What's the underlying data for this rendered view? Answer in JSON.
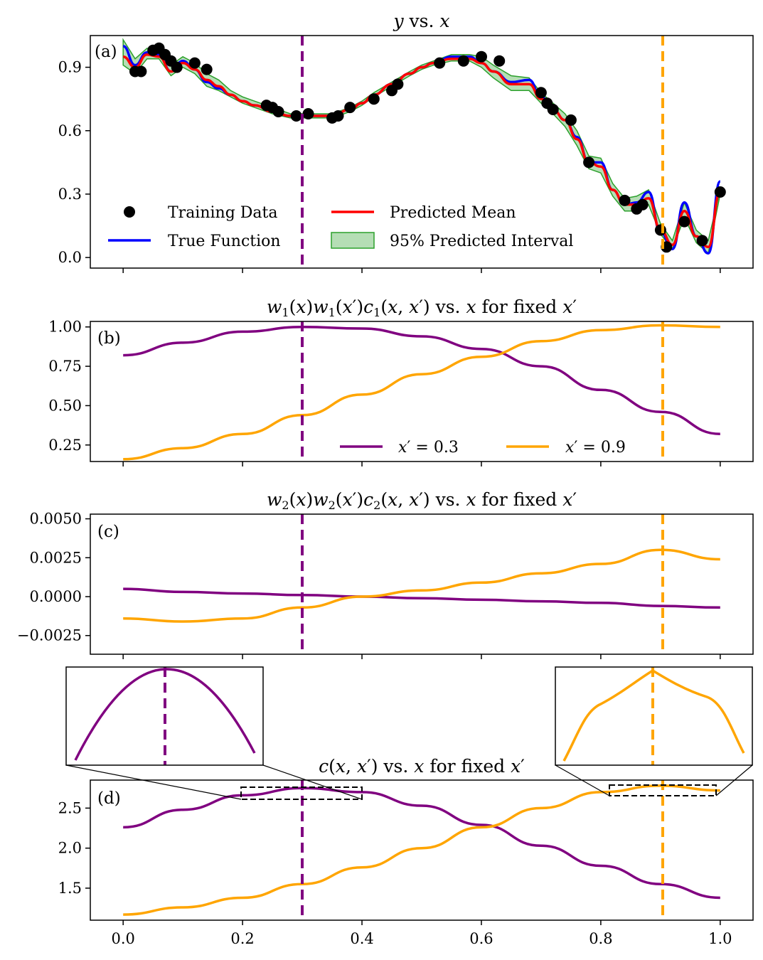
{
  "figure": {
    "x_tick_labels": [
      "0.0",
      "0.2",
      "0.4",
      "0.6",
      "0.8",
      "1.0"
    ],
    "x_ticks": [
      0,
      0.2,
      0.4,
      0.6,
      0.8,
      1.0
    ],
    "x_range": [
      -0.055,
      1.055
    ],
    "fixed_points": [
      0.3,
      0.9
    ],
    "colors": {
      "purple": "#800080",
      "orange": "#FFA500",
      "blue": "#0000FF",
      "red": "#FF0000",
      "green_fill": "#2CA02C",
      "training": "#000000"
    }
  },
  "chart_data": [
    {
      "id": "a",
      "tag": "(a)",
      "type": "line",
      "title": "y vs. x",
      "ylim": [
        -0.05,
        1.05
      ],
      "y_ticks": [
        0.0,
        0.3,
        0.6,
        0.9
      ],
      "y_tick_labels": [
        "0.0",
        "0.3",
        "0.6",
        "0.9"
      ],
      "legend": {
        "training": "Training Data",
        "true": "True Function",
        "mean": "Predicted Mean",
        "interval": "95% Predicted Interval"
      },
      "series": [
        {
          "name": "True Function",
          "x": [
            0.0,
            0.02,
            0.04,
            0.06,
            0.08,
            0.1,
            0.12,
            0.14,
            0.16,
            0.18,
            0.2,
            0.22,
            0.25,
            0.28,
            0.3,
            0.32,
            0.35,
            0.38,
            0.4,
            0.42,
            0.45,
            0.48,
            0.5,
            0.52,
            0.55,
            0.58,
            0.6,
            0.62,
            0.65,
            0.68,
            0.7,
            0.72,
            0.74,
            0.76,
            0.78,
            0.8,
            0.82,
            0.84,
            0.86,
            0.88,
            0.9,
            0.92,
            0.94,
            0.96,
            0.98,
            1.0
          ],
          "values": [
            1.0,
            0.91,
            0.97,
            0.96,
            0.88,
            0.93,
            0.89,
            0.83,
            0.8,
            0.77,
            0.74,
            0.72,
            0.69,
            0.67,
            0.67,
            0.67,
            0.67,
            0.7,
            0.73,
            0.77,
            0.82,
            0.87,
            0.9,
            0.92,
            0.95,
            0.95,
            0.92,
            0.88,
            0.83,
            0.84,
            0.76,
            0.7,
            0.65,
            0.57,
            0.45,
            0.45,
            0.32,
            0.25,
            0.26,
            0.31,
            0.12,
            0.04,
            0.26,
            0.1,
            0.02,
            0.36
          ]
        },
        {
          "name": "Predicted Mean",
          "x": [
            0.0,
            0.02,
            0.04,
            0.06,
            0.08,
            0.1,
            0.12,
            0.14,
            0.16,
            0.18,
            0.2,
            0.22,
            0.25,
            0.28,
            0.3,
            0.32,
            0.35,
            0.38,
            0.4,
            0.42,
            0.45,
            0.48,
            0.5,
            0.52,
            0.55,
            0.58,
            0.6,
            0.62,
            0.65,
            0.68,
            0.7,
            0.72,
            0.74,
            0.76,
            0.78,
            0.8,
            0.82,
            0.84,
            0.86,
            0.88,
            0.9,
            0.92,
            0.94,
            0.96,
            0.98,
            1.0
          ],
          "values": [
            0.95,
            0.9,
            0.96,
            0.95,
            0.88,
            0.92,
            0.89,
            0.84,
            0.81,
            0.77,
            0.74,
            0.72,
            0.69,
            0.67,
            0.67,
            0.67,
            0.67,
            0.7,
            0.73,
            0.77,
            0.82,
            0.87,
            0.9,
            0.92,
            0.94,
            0.94,
            0.92,
            0.88,
            0.82,
            0.82,
            0.75,
            0.7,
            0.65,
            0.56,
            0.45,
            0.43,
            0.32,
            0.25,
            0.25,
            0.28,
            0.13,
            0.06,
            0.22,
            0.1,
            0.05,
            0.31
          ]
        },
        {
          "name": "95% Predicted Interval",
          "x": [
            0.0,
            0.02,
            0.04,
            0.06,
            0.08,
            0.1,
            0.12,
            0.14,
            0.16,
            0.18,
            0.2,
            0.22,
            0.25,
            0.28,
            0.3,
            0.32,
            0.35,
            0.38,
            0.4,
            0.42,
            0.45,
            0.48,
            0.5,
            0.52,
            0.55,
            0.58,
            0.6,
            0.62,
            0.65,
            0.68,
            0.7,
            0.72,
            0.74,
            0.76,
            0.78,
            0.8,
            0.82,
            0.84,
            0.86,
            0.88,
            0.9,
            0.92,
            0.94,
            0.96,
            0.98,
            1.0
          ],
          "lower": [
            0.91,
            0.87,
            0.94,
            0.94,
            0.86,
            0.9,
            0.87,
            0.81,
            0.79,
            0.76,
            0.73,
            0.71,
            0.68,
            0.66,
            0.66,
            0.66,
            0.66,
            0.69,
            0.72,
            0.76,
            0.81,
            0.86,
            0.89,
            0.91,
            0.93,
            0.93,
            0.9,
            0.85,
            0.79,
            0.79,
            0.73,
            0.68,
            0.62,
            0.53,
            0.42,
            0.4,
            0.29,
            0.22,
            0.22,
            0.25,
            0.11,
            0.04,
            0.19,
            0.07,
            0.02,
            0.3
          ],
          "upper": [
            1.03,
            0.94,
            0.99,
            0.97,
            0.91,
            0.95,
            0.92,
            0.87,
            0.84,
            0.79,
            0.76,
            0.74,
            0.71,
            0.68,
            0.68,
            0.68,
            0.68,
            0.71,
            0.74,
            0.78,
            0.83,
            0.88,
            0.91,
            0.93,
            0.96,
            0.96,
            0.95,
            0.91,
            0.86,
            0.85,
            0.78,
            0.73,
            0.68,
            0.6,
            0.48,
            0.47,
            0.35,
            0.28,
            0.29,
            0.32,
            0.16,
            0.08,
            0.26,
            0.13,
            0.08,
            0.32
          ]
        },
        {
          "name": "Training Data",
          "x": [
            0.02,
            0.03,
            0.05,
            0.06,
            0.07,
            0.08,
            0.09,
            0.12,
            0.14,
            0.24,
            0.25,
            0.26,
            0.29,
            0.31,
            0.35,
            0.36,
            0.38,
            0.42,
            0.45,
            0.46,
            0.53,
            0.57,
            0.6,
            0.63,
            0.7,
            0.71,
            0.72,
            0.75,
            0.78,
            0.84,
            0.86,
            0.87,
            0.9,
            0.91,
            0.94,
            0.97,
            1.0
          ],
          "values": [
            0.88,
            0.88,
            0.98,
            0.99,
            0.96,
            0.93,
            0.9,
            0.92,
            0.89,
            0.72,
            0.71,
            0.69,
            0.67,
            0.68,
            0.66,
            0.67,
            0.71,
            0.75,
            0.79,
            0.82,
            0.92,
            0.93,
            0.95,
            0.93,
            0.78,
            0.73,
            0.7,
            0.65,
            0.45,
            0.27,
            0.23,
            0.25,
            0.13,
            0.05,
            0.17,
            0.08,
            0.31
          ]
        }
      ]
    },
    {
      "id": "b",
      "tag": "(b)",
      "type": "line",
      "title": "w1(x)w1(x′)c1(x, x′) vs. x for fixed x′",
      "title_parts": {
        "w": "w",
        "one": "1",
        "x": "x",
        "prime": "′",
        "c": "c",
        "sep": ", ",
        "tail": " vs. ",
        "tail2": " for fixed "
      },
      "ylim": [
        0.145,
        1.035
      ],
      "y_ticks": [
        0.25,
        0.5,
        0.75,
        1.0
      ],
      "y_tick_labels": [
        "0.25",
        "0.50",
        "0.75",
        "1.00"
      ],
      "legend": {
        "s1": "x′ = 0.3",
        "s2": "x′ = 0.9"
      },
      "series": [
        {
          "name": "x′ = 0.3",
          "x": [
            0.0,
            0.1,
            0.2,
            0.3,
            0.4,
            0.5,
            0.6,
            0.7,
            0.8,
            0.9,
            1.0
          ],
          "values": [
            0.82,
            0.9,
            0.97,
            1.0,
            0.99,
            0.94,
            0.86,
            0.75,
            0.6,
            0.46,
            0.32
          ]
        },
        {
          "name": "x′ = 0.9",
          "x": [
            0.0,
            0.1,
            0.2,
            0.3,
            0.4,
            0.5,
            0.6,
            0.7,
            0.8,
            0.9,
            1.0
          ],
          "values": [
            0.16,
            0.23,
            0.32,
            0.44,
            0.57,
            0.7,
            0.81,
            0.91,
            0.98,
            1.01,
            1.0
          ]
        }
      ]
    },
    {
      "id": "c",
      "tag": "(c)",
      "type": "line",
      "title": "w2(x)w2(x′)c2(x, x′) vs. x for fixed x′",
      "ylim": [
        -0.0037,
        0.0053
      ],
      "y_ticks": [
        -0.0025,
        0.0,
        0.0025,
        0.005
      ],
      "y_tick_labels": [
        "−0.0025",
        "0.0000",
        "0.0025",
        "0.0050"
      ],
      "series": [
        {
          "name": "x′ = 0.3",
          "x": [
            0.0,
            0.1,
            0.2,
            0.3,
            0.4,
            0.5,
            0.6,
            0.7,
            0.8,
            0.9,
            1.0
          ],
          "values": [
            0.0005,
            0.0003,
            0.0002,
            0.0001,
            0.0,
            -0.0001,
            -0.0002,
            -0.0003,
            -0.0004,
            -0.0006,
            -0.0007
          ]
        },
        {
          "name": "x′ = 0.9",
          "x": [
            0.0,
            0.1,
            0.2,
            0.3,
            0.4,
            0.5,
            0.6,
            0.7,
            0.8,
            0.9,
            1.0
          ],
          "values": [
            -0.0014,
            -0.0016,
            -0.0014,
            -0.0007,
            0.0,
            0.0004,
            0.0009,
            0.0015,
            0.0021,
            0.003,
            0.0024
          ]
        }
      ]
    },
    {
      "id": "d",
      "tag": "(d)",
      "type": "line",
      "title": "c(x, x′) vs. x for fixed x′",
      "ylim": [
        1.1,
        2.85
      ],
      "y_ticks": [
        1.5,
        2.0,
        2.5
      ],
      "y_tick_labels": [
        "1.5",
        "2.0",
        "2.5"
      ],
      "zoom_boxes": [
        {
          "x": [
            0.2,
            0.4
          ],
          "y": [
            2.65,
            2.8
          ]
        },
        {
          "x": [
            0.81,
            0.99
          ],
          "y": [
            2.69,
            2.82
          ]
        }
      ],
      "series": [
        {
          "name": "x′ = 0.3",
          "x": [
            0.0,
            0.1,
            0.2,
            0.3,
            0.4,
            0.5,
            0.6,
            0.7,
            0.8,
            0.9,
            1.0
          ],
          "values": [
            2.26,
            2.48,
            2.66,
            2.75,
            2.7,
            2.53,
            2.29,
            2.03,
            1.78,
            1.55,
            1.38
          ]
        },
        {
          "name": "x′ = 0.9",
          "x": [
            0.0,
            0.1,
            0.2,
            0.3,
            0.4,
            0.5,
            0.6,
            0.7,
            0.8,
            0.9,
            1.0
          ],
          "values": [
            1.17,
            1.26,
            1.38,
            1.55,
            1.76,
            2.0,
            2.26,
            2.5,
            2.7,
            2.78,
            2.72
          ]
        }
      ]
    }
  ]
}
